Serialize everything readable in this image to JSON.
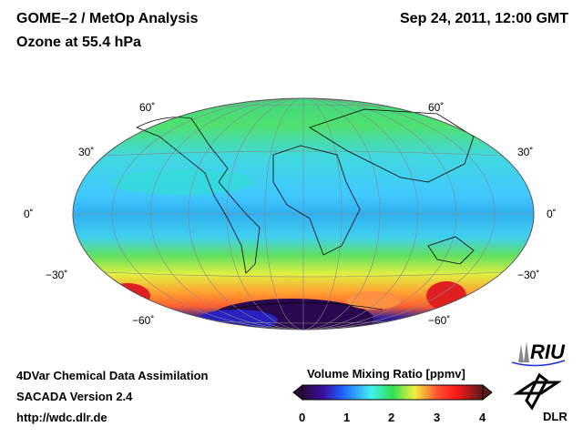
{
  "header": {
    "title": "GOME–2 / MetOp Analysis",
    "subtitle": "Ozone at 55.4 hPa",
    "datetime": "Sep 24, 2011, 12:00 GMT"
  },
  "map": {
    "lat_labels": [
      "60˚",
      "30˚",
      "0˚",
      "−30˚",
      "−60˚"
    ]
  },
  "footer": {
    "line1": "4DVar Chemical Data Assimilation",
    "line2": "SACADA Version 2.4",
    "line3": "http://wdc.dlr.de"
  },
  "colorbar": {
    "title": "Volume Mixing Ratio [ppmv]",
    "ticks": [
      "0",
      "1",
      "2",
      "3",
      "4"
    ],
    "min": 0,
    "max": 4,
    "colors": [
      "#2a0a3a",
      "#3a10a0",
      "#2060ff",
      "#40e0ff",
      "#30e060",
      "#f0f040",
      "#ff8030",
      "#ff2020",
      "#5a1a1a"
    ]
  },
  "logos": {
    "riu": "RIU",
    "dlr": "DLR"
  }
}
